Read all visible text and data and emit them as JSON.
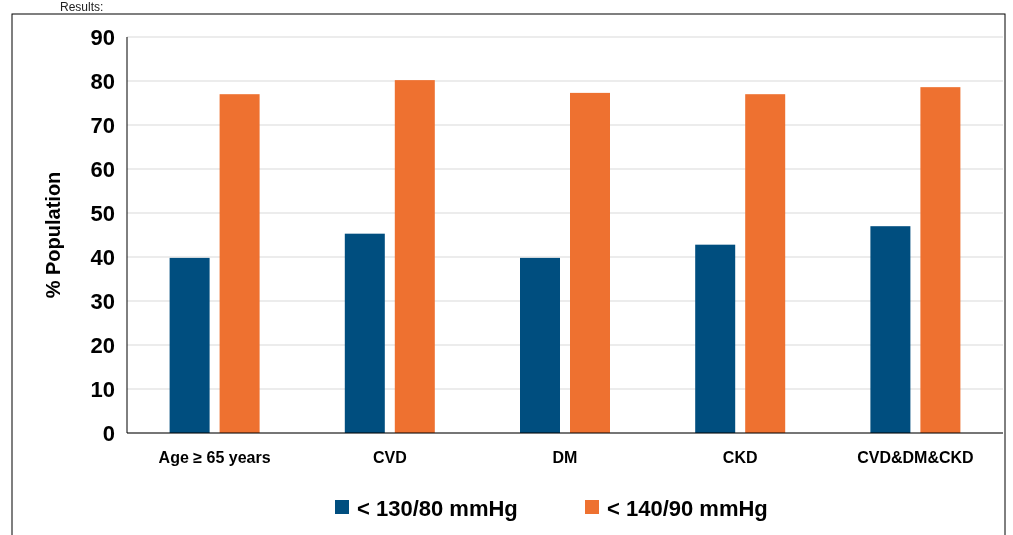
{
  "chart_data": {
    "type": "bar",
    "ylabel": "% Population",
    "annotations": [
      "Results:"
    ],
    "categories": [
      "Age ≥ 65 years",
      "CVD",
      "DM",
      "CKD",
      "CVD&DM&CKD"
    ],
    "series": [
      {
        "name": "< 130/80 mmHg",
        "color": "#004e7f",
        "values": [
          39.8,
          45.3,
          39.8,
          42.8,
          47.0
        ]
      },
      {
        "name": "< 140/90 mmHg",
        "color": "#ee7130",
        "values": [
          77.0,
          80.2,
          77.3,
          77.0,
          78.6
        ]
      }
    ],
    "ylim": [
      0,
      90
    ],
    "yticks": [
      0,
      10,
      20,
      30,
      40,
      50,
      60,
      70,
      80,
      90
    ],
    "grid": "y",
    "legend": "bottom"
  }
}
